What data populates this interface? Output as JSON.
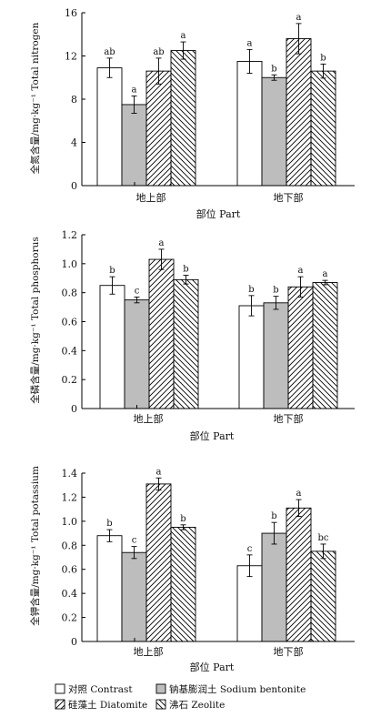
{
  "chart_data": [
    {
      "type": "bar",
      "ylabel": "全氮含量/mg·kg⁻¹ Total nitrogen",
      "xlabel": "部位 Part",
      "categories": [
        "地上部",
        "地下部"
      ],
      "ylim": [
        0,
        16
      ],
      "yticks": [
        "0",
        "4",
        "8",
        "12",
        "16"
      ],
      "ytick_values": [
        0,
        4,
        8,
        12,
        16
      ],
      "series": [
        {
          "name": "对照 Contrast",
          "values": [
            10.9,
            11.5
          ],
          "errors": [
            0.9,
            1.1
          ],
          "letters": [
            "ab",
            "a"
          ]
        },
        {
          "name": "钠基膨润土 Sodium bentonite",
          "values": [
            7.5,
            10.0
          ],
          "errors": [
            0.8,
            0.25
          ],
          "letters": [
            "a",
            "b"
          ]
        },
        {
          "name": "硅藻土 Diatomite",
          "values": [
            10.6,
            13.6
          ],
          "errors": [
            1.2,
            1.4
          ],
          "letters": [
            "ab",
            "a"
          ]
        },
        {
          "name": "沸石 Zeolite",
          "values": [
            12.5,
            10.6
          ],
          "errors": [
            0.8,
            0.65
          ],
          "letters": [
            "a",
            "b"
          ]
        }
      ]
    },
    {
      "type": "bar",
      "ylabel": "全磷含量/mg·kg⁻¹ Total phosphorus",
      "xlabel": "部位 Part",
      "categories": [
        "地上部",
        "地下部"
      ],
      "ylim": [
        0,
        1.2
      ],
      "yticks": [
        "0",
        "0.2",
        "0.4",
        "0.6",
        "0.8",
        "1.0",
        "1.2"
      ],
      "ytick_values": [
        0,
        0.2,
        0.4,
        0.6,
        0.8,
        1.0,
        1.2
      ],
      "series": [
        {
          "name": "对照 Contrast",
          "values": [
            0.85,
            0.71
          ],
          "errors": [
            0.06,
            0.07
          ],
          "letters": [
            "b",
            "b"
          ]
        },
        {
          "name": "钠基膨润土 Sodium bentonite",
          "values": [
            0.75,
            0.73
          ],
          "errors": [
            0.02,
            0.045
          ],
          "letters": [
            "c",
            "b"
          ]
        },
        {
          "name": "硅藻土 Diatomite",
          "values": [
            1.03,
            0.84
          ],
          "errors": [
            0.07,
            0.07
          ],
          "letters": [
            "a",
            "a"
          ]
        },
        {
          "name": "沸石 Zeolite",
          "values": [
            0.89,
            0.87
          ],
          "errors": [
            0.03,
            0.015
          ],
          "letters": [
            "b",
            "a"
          ]
        }
      ]
    },
    {
      "type": "bar",
      "ylabel": "全钾含量/mg·kg⁻¹ Total potassium",
      "xlabel": "部位 Part",
      "categories": [
        "地上部",
        "地下部"
      ],
      "ylim": [
        0,
        1.4
      ],
      "yticks": [
        "0",
        "0.2",
        "0.4",
        "0.6",
        "0.8",
        "1.0",
        "1.2",
        "1.4"
      ],
      "ytick_values": [
        0,
        0.2,
        0.4,
        0.6,
        0.8,
        1.0,
        1.2,
        1.4
      ],
      "series": [
        {
          "name": "对照 Contrast",
          "values": [
            0.88,
            0.63
          ],
          "errors": [
            0.05,
            0.09
          ],
          "letters": [
            "b",
            "c"
          ]
        },
        {
          "name": "钠基膨润土 Sodium bentonite",
          "values": [
            0.74,
            0.9
          ],
          "errors": [
            0.05,
            0.09
          ],
          "letters": [
            "c",
            "b"
          ]
        },
        {
          "name": "硅藻土 Diatomite",
          "values": [
            1.31,
            1.11
          ],
          "errors": [
            0.05,
            0.07
          ],
          "letters": [
            "a",
            "a"
          ]
        },
        {
          "name": "沸石 Zeolite",
          "values": [
            0.95,
            0.75
          ],
          "errors": [
            0.02,
            0.06
          ],
          "letters": [
            "b",
            "bc"
          ]
        }
      ]
    }
  ],
  "legend": {
    "items": [
      {
        "label": "对照 Contrast",
        "fill": "white"
      },
      {
        "label": "钠基膨润土 Sodium bentonite",
        "fill": "gray"
      },
      {
        "label": "硅藻土 Diatomite",
        "fill": "hatch-right"
      },
      {
        "label": "沸石 Zeolite",
        "fill": "hatch-left"
      }
    ]
  },
  "colors": {
    "axis": "#000000",
    "bentonite_fill": "#bdbdbd",
    "bar_edge": "#000000"
  }
}
